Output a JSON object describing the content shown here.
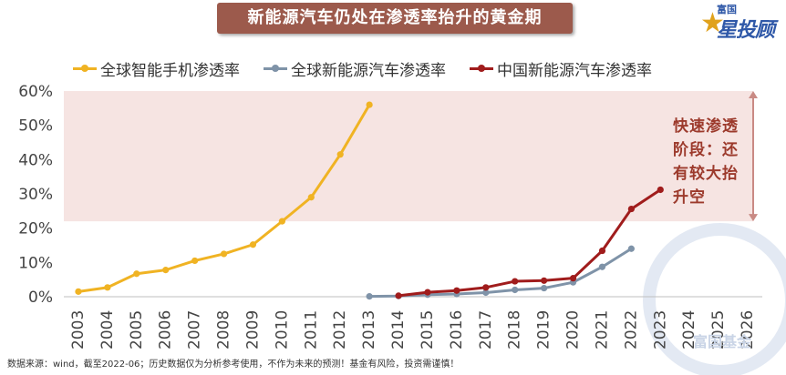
{
  "header": {
    "title": "新能源汽车仍处在渗透率抬升的黄金期"
  },
  "logo": {
    "small_text": "富国",
    "main_text": "星投顾"
  },
  "zone_note": "快速渗透阶段：还有较大抬升空",
  "footer": {
    "source": "数据来源：wind，截至2022-06；历史数据仅为分析参考使用，不作为未来的预测！基金有风险，投资需谨慎！",
    "watermark": "富国基金"
  },
  "chart_data": {
    "type": "line",
    "categories": [
      "2003",
      "2004",
      "2005",
      "2006",
      "2007",
      "2008",
      "2009",
      "2010",
      "2011",
      "2012",
      "2013",
      "2014",
      "2015",
      "2016",
      "2017",
      "2018",
      "2019",
      "2020",
      "2021",
      "2022",
      "2023",
      "2024",
      "2025",
      "2026"
    ],
    "ylim": [
      0,
      60
    ],
    "yticks": [
      "0%",
      "10%",
      "20%",
      "30%",
      "40%",
      "50%",
      "60%"
    ],
    "grid": false,
    "legend_position": "top",
    "highlight_band": {
      "from": 22,
      "to": 60,
      "color": "#f6e4e2"
    },
    "series": [
      {
        "name": "全球智能手机渗透率",
        "color": "#f0b323",
        "values": [
          1.5,
          2.7,
          6.7,
          7.8,
          10.5,
          12.5,
          15.2,
          22,
          29,
          41.5,
          56,
          null,
          null,
          null,
          null,
          null,
          null,
          null,
          null,
          null,
          null,
          null,
          null,
          null
        ]
      },
      {
        "name": "全球新能源汽车渗透率",
        "color": "#7f93a8",
        "values": [
          null,
          null,
          null,
          null,
          null,
          null,
          null,
          null,
          null,
          null,
          0.1,
          0.2,
          0.6,
          0.8,
          1.2,
          2.0,
          2.5,
          4.2,
          8.7,
          14.0,
          null,
          null,
          null,
          null
        ]
      },
      {
        "name": "中国新能源汽车渗透率",
        "color": "#a01c1c",
        "values": [
          null,
          null,
          null,
          null,
          null,
          null,
          null,
          null,
          null,
          null,
          null,
          0.3,
          1.3,
          1.8,
          2.7,
          4.5,
          4.7,
          5.4,
          13.4,
          25.6,
          31.2,
          null,
          null,
          null
        ]
      }
    ]
  }
}
